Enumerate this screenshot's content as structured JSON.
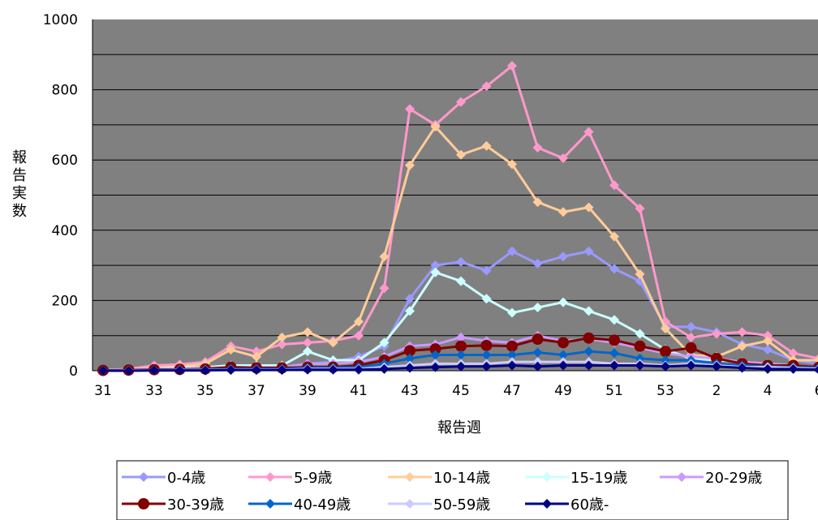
{
  "chart_data": {
    "type": "line",
    "title": "",
    "xlabel": "報告週",
    "ylabel": "報告実数",
    "ylim": [
      0,
      1000
    ],
    "yticks": [
      0,
      200,
      400,
      600,
      800,
      1000
    ],
    "categories": [
      "31",
      "32",
      "33",
      "34",
      "35",
      "36",
      "37",
      "38",
      "39",
      "40",
      "41",
      "42",
      "43",
      "44",
      "45",
      "46",
      "47",
      "48",
      "49",
      "50",
      "51",
      "52",
      "53",
      "1",
      "2",
      "3",
      "4",
      "5",
      "6"
    ],
    "xtick_labels": [
      "31",
      "",
      "33",
      "",
      "35",
      "",
      "37",
      "",
      "39",
      "",
      "41",
      "",
      "43",
      "",
      "45",
      "",
      "47",
      "",
      "49",
      "",
      "51",
      "",
      "53",
      "",
      "2",
      "",
      "4",
      "",
      "6"
    ],
    "grid": true,
    "plot_background": "#808080",
    "legend_position": "bottom",
    "series": [
      {
        "name": "0-4歳",
        "color": "#9999ff",
        "marker": "diamond",
        "values": [
          2,
          3,
          8,
          8,
          5,
          10,
          10,
          8,
          20,
          25,
          40,
          70,
          205,
          300,
          310,
          285,
          340,
          305,
          325,
          340,
          290,
          255,
          125,
          125,
          110,
          75,
          60,
          30,
          20
        ]
      },
      {
        "name": "5-9歳",
        "color": "#ff99cc",
        "marker": "diamond",
        "values": [
          2,
          5,
          15,
          18,
          25,
          70,
          55,
          75,
          80,
          85,
          100,
          235,
          745,
          700,
          765,
          810,
          868,
          635,
          605,
          680,
          528,
          462,
          140,
          95,
          105,
          110,
          100,
          50,
          35
        ]
      },
      {
        "name": "10-14歳",
        "color": "#ffcc99",
        "marker": "diamond",
        "values": [
          1,
          3,
          8,
          12,
          20,
          60,
          40,
          95,
          110,
          80,
          140,
          325,
          585,
          695,
          615,
          640,
          588,
          480,
          452,
          465,
          382,
          275,
          120,
          45,
          40,
          70,
          85,
          30,
          30
        ]
      },
      {
        "name": "15-19歳",
        "color": "#ccffff",
        "marker": "diamond",
        "values": [
          1,
          2,
          5,
          8,
          10,
          15,
          15,
          15,
          55,
          30,
          30,
          80,
          170,
          280,
          255,
          205,
          165,
          180,
          195,
          170,
          145,
          105,
          60,
          35,
          30,
          25,
          20,
          15,
          10
        ]
      },
      {
        "name": "20-29歳",
        "color": "#cc99ff",
        "marker": "diamond",
        "values": [
          1,
          2,
          5,
          5,
          8,
          10,
          10,
          10,
          20,
          20,
          25,
          40,
          70,
          75,
          95,
          85,
          80,
          100,
          85,
          90,
          80,
          65,
          50,
          40,
          35,
          25,
          20,
          15,
          10
        ]
      },
      {
        "name": "30-39歳",
        "color": "#800000",
        "marker": "circle",
        "values": [
          1,
          2,
          3,
          4,
          5,
          10,
          8,
          8,
          10,
          10,
          15,
          30,
          57,
          62,
          70,
          72,
          70,
          90,
          80,
          93,
          87,
          70,
          55,
          65,
          35,
          20,
          15,
          15,
          10
        ]
      },
      {
        "name": "40-49歳",
        "color": "#0066cc",
        "marker": "diamond",
        "values": [
          1,
          1,
          2,
          3,
          3,
          5,
          5,
          5,
          8,
          8,
          10,
          20,
          35,
          45,
          45,
          45,
          45,
          52,
          45,
          55,
          50,
          35,
          30,
          30,
          20,
          15,
          12,
          10,
          8
        ]
      },
      {
        "name": "50-59歳",
        "color": "#ccccff",
        "marker": "diamond",
        "values": [
          0,
          1,
          1,
          2,
          2,
          3,
          3,
          3,
          5,
          5,
          5,
          10,
          15,
          20,
          20,
          20,
          25,
          25,
          25,
          25,
          20,
          20,
          15,
          20,
          15,
          10,
          10,
          8,
          5
        ]
      },
      {
        "name": "60歳-",
        "color": "#000080",
        "marker": "diamond",
        "values": [
          0,
          0,
          1,
          1,
          1,
          2,
          2,
          2,
          3,
          3,
          3,
          5,
          8,
          10,
          12,
          12,
          15,
          12,
          15,
          15,
          15,
          15,
          12,
          15,
          12,
          8,
          5,
          5,
          3
        ]
      }
    ]
  }
}
